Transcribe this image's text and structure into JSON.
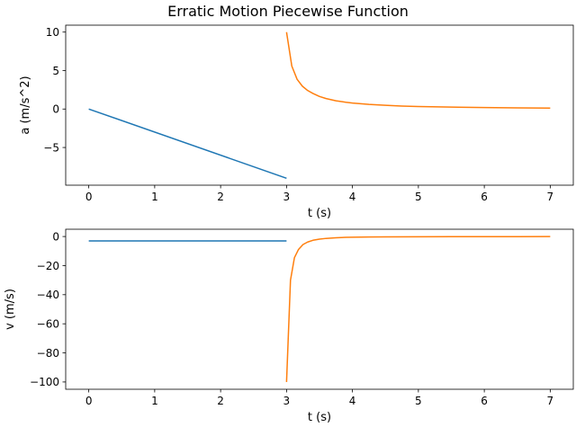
{
  "chart_data": {
    "title": "Erratic Motion Piecewise Function",
    "colors": {
      "segment1": "#1f77b4",
      "segment2": "#ff7f0e"
    },
    "panels": [
      {
        "type": "line",
        "xlabel": "t (s)",
        "ylabel": "a (m/s^2)",
        "xlim": [
          -0.35,
          7.35
        ],
        "ylim": [
          -9.9,
          10.9
        ],
        "xticks": [
          0,
          1,
          2,
          3,
          4,
          5,
          6,
          7
        ],
        "yticks": [
          -5,
          0,
          5,
          10
        ],
        "series": [
          {
            "color": "#1f77b4",
            "x": [
              0,
              3
            ],
            "y": [
              0,
              -9
            ]
          },
          {
            "color": "#ff7f0e",
            "x": [
              3.0,
              3.08,
              3.16,
              3.24,
              3.32,
              3.4,
              3.5,
              3.6,
              3.75,
              3.9,
              4.0,
              4.25,
              4.5,
              4.75,
              5.0,
              5.5,
              6.0,
              6.5,
              7.0
            ],
            "y": [
              10.0,
              5.58,
              3.87,
              2.97,
              2.41,
              2.03,
              1.63,
              1.36,
              1.07,
              0.88,
              0.78,
              0.6,
              0.48,
              0.39,
              0.33,
              0.25,
              0.19,
              0.15,
              0.12
            ]
          }
        ]
      },
      {
        "type": "line",
        "xlabel": "t (s)",
        "ylabel": "v (m/s)",
        "xlim": [
          -0.35,
          7.35
        ],
        "ylim": [
          -105,
          5
        ],
        "xticks": [
          0,
          1,
          2,
          3,
          4,
          5,
          6,
          7
        ],
        "yticks": [
          0,
          -20,
          -40,
          -60,
          -80,
          -100
        ],
        "series": [
          {
            "color": "#1f77b4",
            "x": [
              0,
              3
            ],
            "y": [
              -3,
              -3
            ]
          },
          {
            "color": "#ff7f0e",
            "x": [
              3.0,
              3.06,
              3.12,
              3.18,
              3.25,
              3.32,
              3.4,
              3.5,
              3.6,
              3.75,
              3.9,
              4.0,
              4.25,
              4.5,
              5.0,
              5.5,
              6.0,
              6.5,
              7.0
            ],
            "y": [
              -100,
              -30,
              -14.5,
              -9.0,
              -5.5,
              -3.8,
              -2.6,
              -1.8,
              -1.3,
              -0.85,
              -0.6,
              -0.5,
              -0.35,
              -0.26,
              -0.16,
              -0.11,
              -0.08,
              -0.06,
              -0.05
            ]
          }
        ]
      }
    ]
  }
}
